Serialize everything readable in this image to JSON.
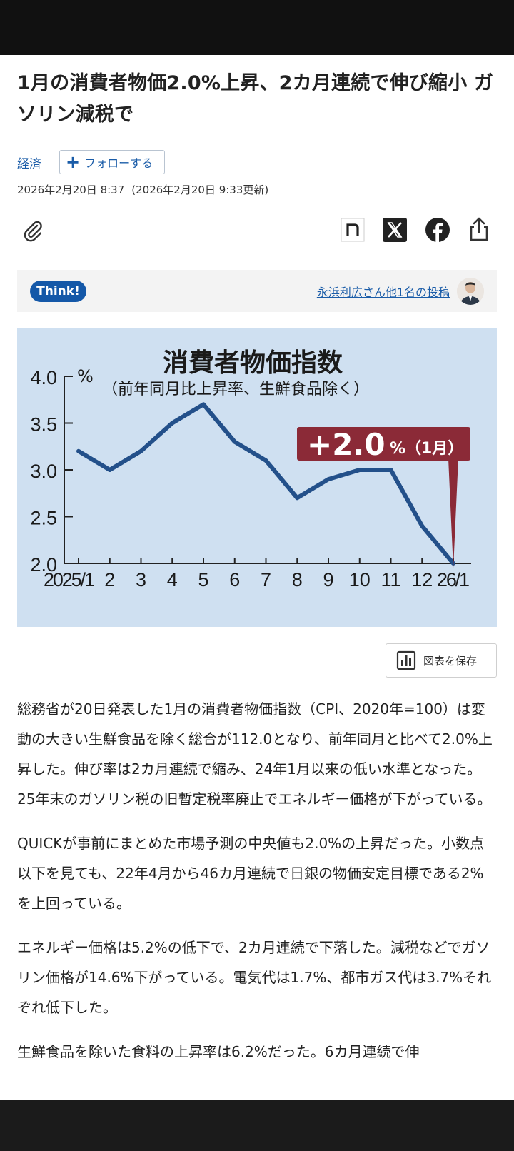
{
  "article": {
    "headline": "1月の消費者物価2.0%上昇、2カ月連続で伸び縮小 ガソリン減税で",
    "tag": "経済",
    "follow_label": "フォローする",
    "published": "2026年2月20日 8:37",
    "updated": "(2026年2月20日 9:33更新)"
  },
  "toolbar": {
    "clip_icon": "paperclip-icon",
    "share_icons": [
      "note-icon",
      "x-icon",
      "facebook-icon",
      "share-icon"
    ]
  },
  "think": {
    "badge": "Think!",
    "link": "永浜利広さん他1名の投稿"
  },
  "chart_data": {
    "type": "line",
    "title": "消費者物価指数",
    "subtitle": "（前年同月比上昇率、生鮮食品除く）",
    "unit": "%",
    "categories": [
      "2025/1",
      "2",
      "3",
      "4",
      "5",
      "6",
      "7",
      "8",
      "9",
      "10",
      "11",
      "12",
      "26/1"
    ],
    "values": [
      3.2,
      3.0,
      3.2,
      3.5,
      3.7,
      3.3,
      3.1,
      2.7,
      2.9,
      3.0,
      3.0,
      2.4,
      2.0
    ],
    "yticks": [
      "4.0",
      "3.5",
      "3.0",
      "2.5",
      "2.0"
    ],
    "ylim": [
      2.0,
      4.0
    ],
    "callout_value": "+2.0",
    "callout_unit": "%（1月）",
    "grid": false,
    "colors": {
      "background": "#cfe0f1",
      "line": "#23508a",
      "callout": "#8b2a37"
    }
  },
  "save_label": "図表を保存",
  "body": {
    "p1": "総務省が20日発表した1月の消費者物価指数（CPI、2020年=100）は変動の大きい生鮮食品を除く総合が112.0となり、前年同月と比べて2.0%上昇した。伸び率は2カ月連続で縮み、24年1月以来の低い水準となった。25年末のガソリン税の旧暫定税率廃止でエネルギー価格が下がっている。",
    "p2": "QUICKが事前にまとめた市場予測の中央値も2.0%の上昇だった。小数点以下を見ても、22年4月から46カ月連続で日銀の物価安定目標である2%を上回っている。",
    "p3": "エネルギー価格は5.2%の低下で、2カ月連続で下落した。減税などでガソリン価格が14.6%下がっている。電気代は1.7%、都市ガス代は3.7%それぞれ低下した。",
    "p4": "生鮮食品を除いた食料の上昇率は6.2%だった。6カ月連続で伸"
  }
}
